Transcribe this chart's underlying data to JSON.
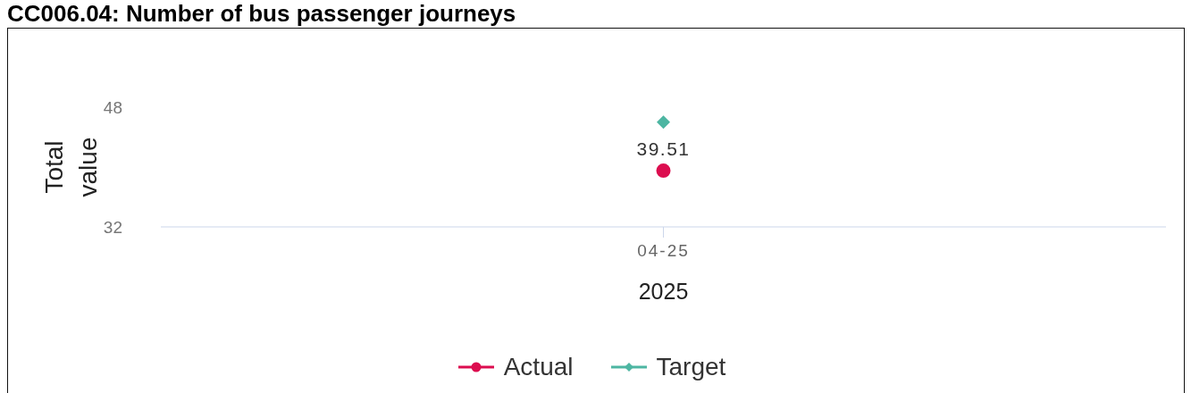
{
  "chart_data": {
    "type": "line",
    "title": "CC006.04: Number of bus passenger journeys",
    "xlabel": "2025",
    "ylabel": "Total value",
    "categories": [
      "04-25"
    ],
    "series": [
      {
        "name": "Actual",
        "color": "#dc0d4f",
        "values": [
          39.51
        ],
        "marker": "circle",
        "value_labels": [
          "39.51"
        ]
      },
      {
        "name": "Target",
        "color": "#4db6a2",
        "values": [
          46
        ],
        "marker": "diamond"
      }
    ],
    "ylim": [
      32,
      48
    ],
    "yticks": [
      32,
      48
    ],
    "legend": "bottom"
  }
}
